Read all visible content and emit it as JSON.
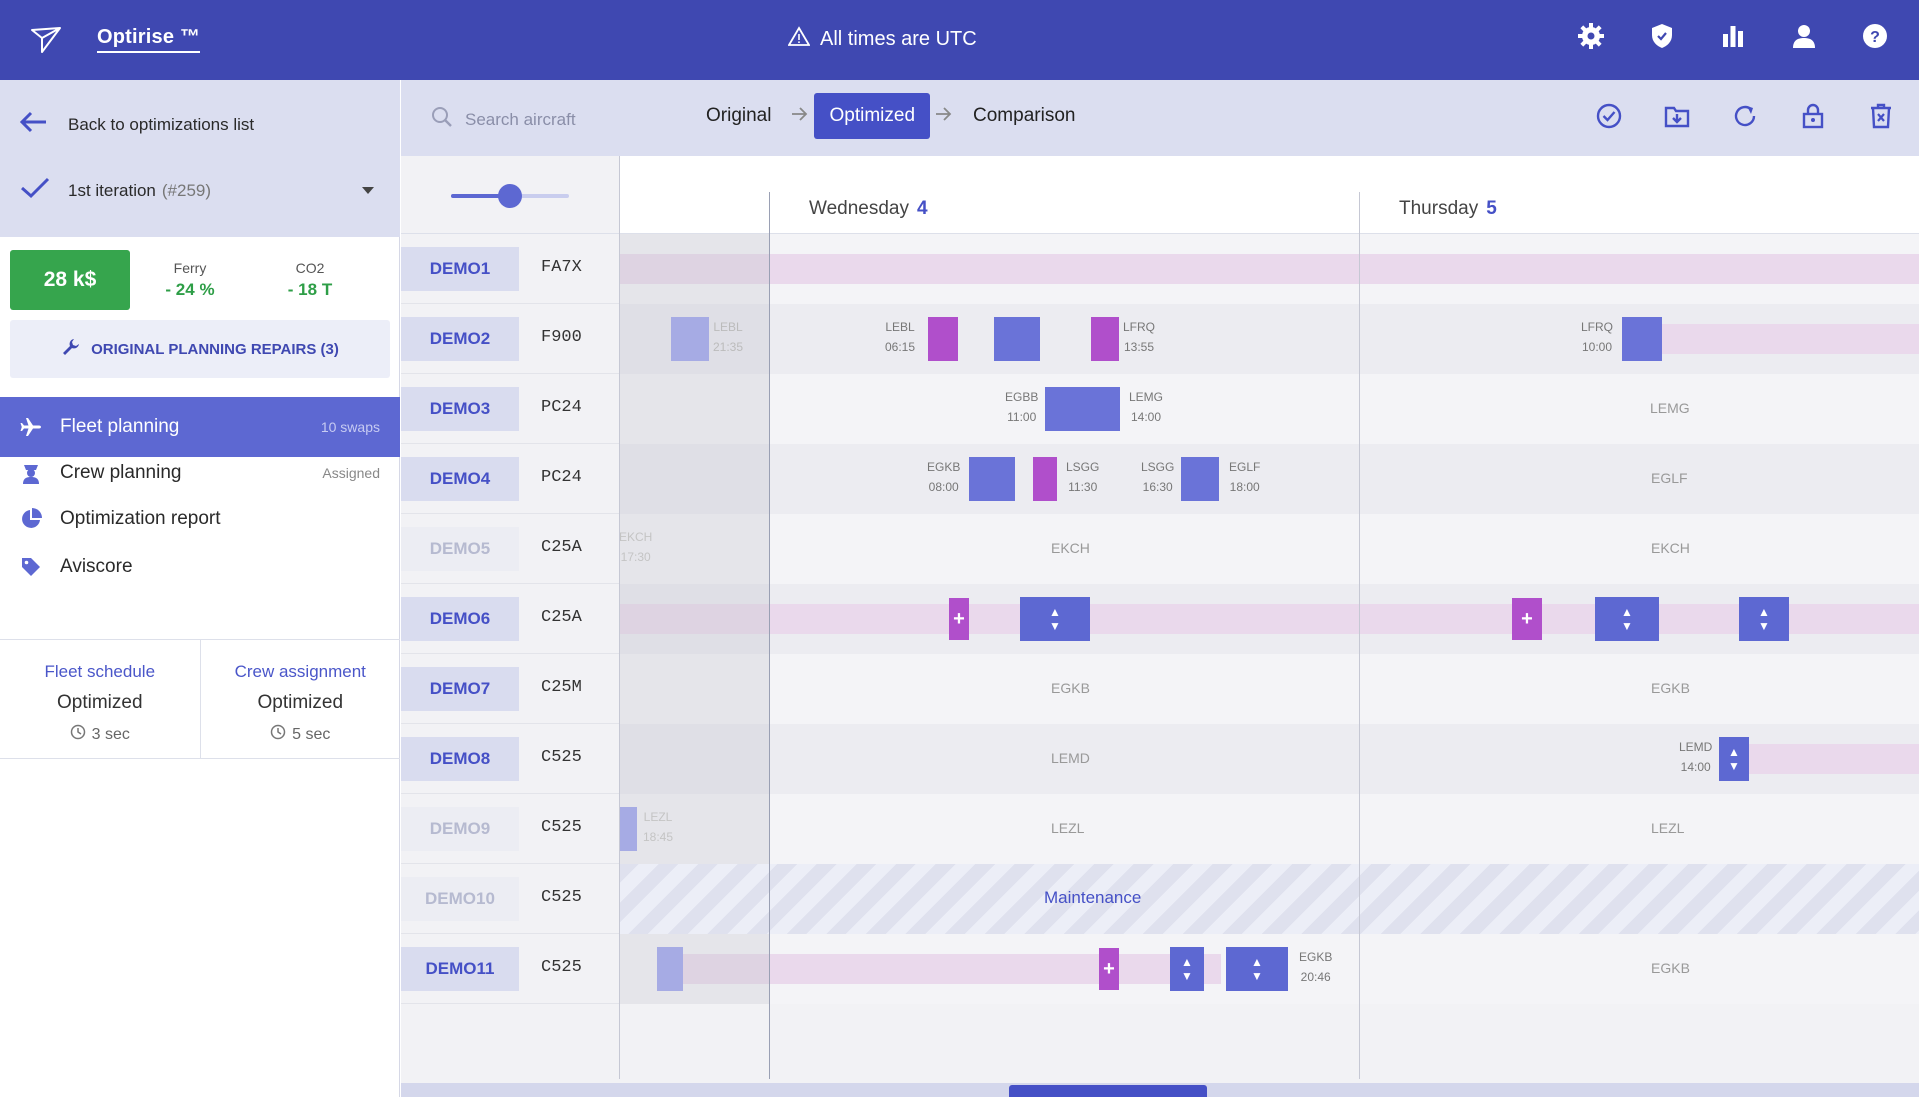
{
  "app": {
    "brand": "Optirise ™",
    "notice": "All times are UTC",
    "top_icons": [
      "gear-icon",
      "shield-icon",
      "bar-chart-icon",
      "user-icon",
      "help-icon"
    ]
  },
  "sidebar": {
    "back_label": "Back to optimizations list",
    "iteration": {
      "label": "1st iteration",
      "id": "(#259)"
    },
    "kpi": {
      "cost": "28 k$",
      "ferry": {
        "label": "Ferry",
        "value": "- 24 %"
      },
      "co2": {
        "label": "CO2",
        "value": "- 18 T"
      }
    },
    "repairs_label": "ORIGINAL PLANNING REPAIRS (3)",
    "nav": [
      {
        "label": "Fleet planning",
        "tag": "10 swaps",
        "icon": "plane-icon",
        "active": true
      },
      {
        "label": "Crew planning",
        "tag": "Assigned",
        "icon": "pilot-icon",
        "active": false
      },
      {
        "label": "Optimization report",
        "tag": "",
        "icon": "pie-chart-icon",
        "active": false
      },
      {
        "label": "Aviscore",
        "tag": "",
        "icon": "tag-icon",
        "active": false
      }
    ],
    "footer": [
      {
        "title": "Fleet schedule",
        "status": "Optimized",
        "time": "3 sec"
      },
      {
        "title": "Crew assignment",
        "status": "Optimized",
        "time": "5 sec"
      }
    ]
  },
  "toolbar": {
    "search_placeholder": "Search aircraft",
    "steps": [
      "Original",
      "Optimized",
      "Comparison"
    ],
    "active_step": "Optimized",
    "icons": [
      "check-circle-icon",
      "download-icon",
      "refresh-icon",
      "lock-icon",
      "delete-icon"
    ]
  },
  "zoom_level": 0.5,
  "days": [
    {
      "name": "Wednesday",
      "num": "4"
    },
    {
      "name": "Thursday",
      "num": "5"
    }
  ],
  "aircraft": [
    {
      "reg": "DEMO1",
      "type": "FA7X"
    },
    {
      "reg": "DEMO2",
      "type": "F900"
    },
    {
      "reg": "DEMO3",
      "type": "PC24"
    },
    {
      "reg": "DEMO4",
      "type": "PC24"
    },
    {
      "reg": "DEMO5",
      "type": "C25A"
    },
    {
      "reg": "DEMO6",
      "type": "C25A"
    },
    {
      "reg": "DEMO7",
      "type": "C25M"
    },
    {
      "reg": "DEMO8",
      "type": "C525"
    },
    {
      "reg": "DEMO9",
      "type": "C525"
    },
    {
      "reg": "DEMO10",
      "type": "C525"
    },
    {
      "reg": "DEMO11",
      "type": "C525"
    }
  ],
  "timeline": {
    "maintenance_label": "Maintenance",
    "plus": "+",
    "d2_lebl_a": "LEBL",
    "d2_lebl_a_t": "21:35",
    "d2_lebl_b": "LEBL",
    "d2_lebl_b_t": "06:15",
    "d2_lfrq_a": "LFRQ",
    "d2_lfrq_a_t": "13:55",
    "d2_lfrq_b": "LFRQ",
    "d2_lfrq_b_t": "10:00",
    "d3_egbb": "EGBB",
    "d3_egbb_t": "11:00",
    "d3_lemg": "LEMG",
    "d3_lemg_t": "14:00",
    "d3_lemg_c": "LEMG",
    "d4_egkb": "EGKB",
    "d4_egkb_t": "08:00",
    "d4_lsgg_a": "LSGG",
    "d4_lsgg_a_t": "11:30",
    "d4_lsgg_b": "LSGG",
    "d4_lsgg_b_t": "16:30",
    "d4_eglf": "EGLF",
    "d4_eglf_t": "18:00",
    "d4_eglf_c": "EGLF",
    "d5_ekch": "EKCH",
    "d5_ekch_t": "17:30",
    "d5_ekch_c1": "EKCH",
    "d5_ekch_c2": "EKCH",
    "d7_egkb_c1": "EGKB",
    "d7_egkb_c2": "EGKB",
    "d8_lemd_c": "LEMD",
    "d8_lemd": "LEMD",
    "d8_lemd_t": "14:00",
    "d9_lezl": "LEZL",
    "d9_lezl_t": "18:45",
    "d9_lezl_c1": "LEZL",
    "d9_lezl_c2": "LEZL",
    "d11_egkb": "EGKB",
    "d11_egkb_t": "20:46",
    "d11_egkb_c": "EGKB"
  }
}
